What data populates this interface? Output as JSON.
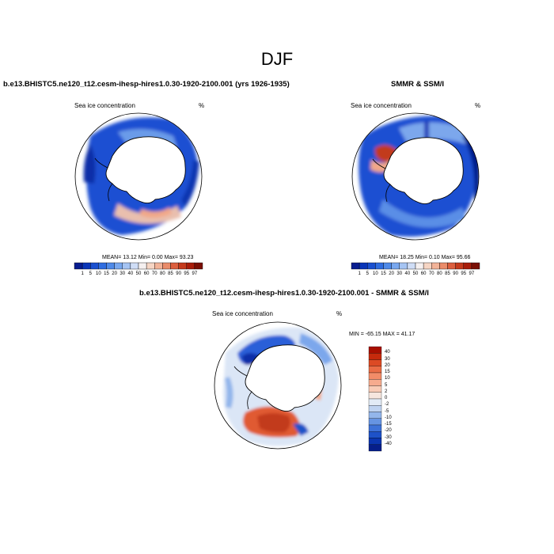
{
  "main_title": "DJF",
  "panels": [
    {
      "title": "b.e13.BHISTC5.ne120_t12.cesm-ihesp-hires1.0.30-1920-2100.001 (yrs 1926-1935)",
      "left_label": "Sea ice concentration",
      "right_label": "%",
      "stats": "MEAN=  13.12  Min=   0.00  Max=  93.23"
    },
    {
      "title": "SMMR & SSM/I",
      "left_label": "Sea ice concentration",
      "right_label": "%",
      "stats": "MEAN=  18.25  Min=   0.10  Max=  95.66"
    },
    {
      "title": "b.e13.BHISTC5.ne120_t12.cesm-ihesp-hires1.0.30-1920-2100.001 - SMMR & SSM/I",
      "left_label": "Sea ice concentration",
      "right_label": "%",
      "stats": "MIN = -65.15 MAX =  41.17"
    }
  ],
  "colorbar_concentration": {
    "labels": [
      "1",
      "5",
      "10",
      "15",
      "20",
      "30",
      "40",
      "50",
      "60",
      "70",
      "80",
      "85",
      "90",
      "95",
      "97"
    ],
    "colors": [
      "#081d8f",
      "#0a35b8",
      "#1a50d0",
      "#2f6de0",
      "#4f8ae8",
      "#79a8ef",
      "#a5c4f3",
      "#cfddf6",
      "#f5f0f0",
      "#f6d5c4",
      "#f2b398",
      "#ea8c6a",
      "#dc5f3e",
      "#c53a1c",
      "#a81d0a",
      "#7a0f04"
    ]
  },
  "colorbar_difference": {
    "labels": [
      "40",
      "30",
      "20",
      "15",
      "10",
      "5",
      "2",
      "0",
      "-2",
      "-5",
      "-10",
      "-15",
      "-20",
      "-30",
      "-40"
    ],
    "colors": [
      "#a80f00",
      "#c62a0c",
      "#dc4a24",
      "#ea6c45",
      "#f28c68",
      "#f6ab8e",
      "#f8cbb6",
      "#f6e6de",
      "#e2ebf6",
      "#bfd3f1",
      "#93b6eb",
      "#6694e2",
      "#3e72d8",
      "#1e52c8",
      "#0b35b0",
      "#061e8a"
    ]
  }
}
